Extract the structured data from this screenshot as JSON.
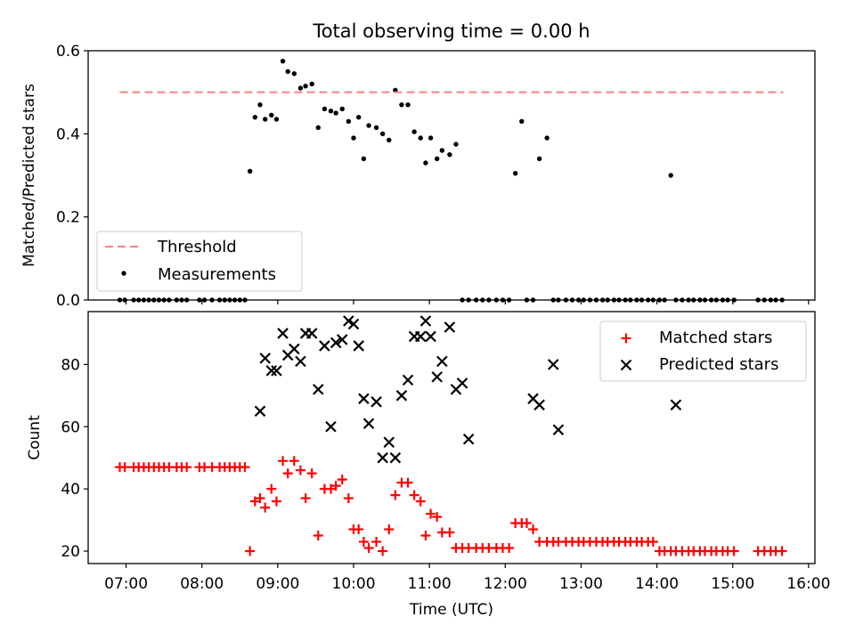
{
  "title": "Total observing time = 0.00 h",
  "colors": {
    "threshold": "#ff7f7f",
    "measurements": "#000000",
    "matched": "#ff0000",
    "predicted": "#000000"
  },
  "chart_data": [
    {
      "type": "scatter",
      "ylabel": "Matched/Predicted stars",
      "ylim": [
        0,
        0.6
      ],
      "xlim": [
        "06:30",
        "16:05"
      ],
      "yticks": [
        "0.0",
        "0.2",
        "0.4",
        "0.6"
      ],
      "legend": {
        "placement": "lower-left",
        "entries": [
          "Threshold",
          "Measurements"
        ]
      },
      "threshold": {
        "name": "Threshold",
        "value": 0.5,
        "x_start": "06:55",
        "x_end": "15:40",
        "style": "dashed"
      },
      "series": [
        {
          "name": "Measurements",
          "x": [
            "06:55",
            "06:59",
            "07:06",
            "07:10",
            "07:14",
            "07:18",
            "07:22",
            "07:26",
            "07:30",
            "07:34",
            "07:40",
            "07:44",
            "07:48",
            "07:58",
            "08:02",
            "08:08",
            "08:14",
            "08:18",
            "08:22",
            "08:26",
            "08:30",
            "08:34",
            "08:38",
            "08:42",
            "08:46",
            "08:50",
            "08:55",
            "08:59",
            "09:04",
            "09:08",
            "09:13",
            "09:18",
            "09:22",
            "09:27",
            "09:32",
            "09:37",
            "09:42",
            "09:46",
            "09:51",
            "09:56",
            "10:00",
            "10:04",
            "10:08",
            "10:12",
            "10:18",
            "10:23",
            "10:28",
            "10:33",
            "10:38",
            "10:43",
            "10:48",
            "10:53",
            "10:57",
            "11:01",
            "11:06",
            "11:10",
            "11:16",
            "11:21",
            "11:26",
            "11:31",
            "11:37",
            "11:42",
            "11:47",
            "11:53",
            "11:58",
            "12:03",
            "12:08",
            "12:13",
            "12:17",
            "12:22",
            "12:27",
            "12:33",
            "12:38",
            "12:42",
            "12:48",
            "12:53",
            "12:58",
            "13:02",
            "13:07",
            "13:12",
            "13:17",
            "13:21",
            "13:26",
            "13:30",
            "13:35",
            "13:39",
            "13:44",
            "13:48",
            "13:53",
            "13:57",
            "14:02",
            "14:06",
            "14:11",
            "14:15",
            "14:20",
            "14:25",
            "14:29",
            "14:34",
            "14:38",
            "14:43",
            "14:47",
            "14:52",
            "14:56",
            "15:01",
            "15:20",
            "15:25",
            "15:30",
            "15:34",
            "15:39"
          ],
          "y": [
            0,
            0,
            0,
            0,
            0,
            0,
            0,
            0,
            0,
            0,
            0,
            0,
            0,
            0,
            0,
            0,
            0,
            0,
            0,
            0,
            0,
            0,
            0.31,
            0.44,
            0.47,
            0.435,
            0.445,
            0.435,
            0.575,
            0.55,
            0.545,
            0.51,
            0.515,
            0.52,
            0.415,
            0.46,
            0.455,
            0.45,
            0.46,
            0.43,
            0.39,
            0.44,
            0.34,
            0.42,
            0.415,
            0.4,
            0.385,
            0.505,
            0.47,
            0.47,
            0.405,
            0.39,
            0.33,
            0.39,
            0.34,
            0.36,
            0.35,
            0.375,
            0,
            0,
            0,
            0,
            0,
            0,
            0,
            0,
            0.305,
            0.43,
            0,
            0,
            0.34,
            0.39,
            0,
            0,
            0,
            0,
            0,
            0,
            0,
            0,
            0,
            0,
            0,
            0,
            0,
            0,
            0,
            0,
            0,
            0,
            0,
            0,
            0.3,
            0,
            0,
            0,
            0,
            0,
            0,
            0,
            0,
            0,
            0,
            0,
            0,
            0,
            0,
            0,
            0
          ],
          "y_note": ""
        }
      ]
    },
    {
      "type": "scatter",
      "xlabel": "Time (UTC)",
      "ylabel": "Count",
      "ylim": [
        16,
        97
      ],
      "xlim": [
        "06:30",
        "16:05"
      ],
      "yticks": [
        "20",
        "40",
        "60",
        "80"
      ],
      "xticks": [
        "07:00",
        "08:00",
        "09:00",
        "10:00",
        "11:00",
        "12:00",
        "13:00",
        "14:00",
        "15:00",
        "16:00"
      ],
      "legend": {
        "placement": "upper-right",
        "entries": [
          "Matched stars",
          "Predicted stars"
        ]
      },
      "series": [
        {
          "name": "Matched stars",
          "marker": "plus",
          "x": [
            "06:55",
            "06:59",
            "07:06",
            "07:10",
            "07:14",
            "07:18",
            "07:22",
            "07:26",
            "07:30",
            "07:34",
            "07:40",
            "07:44",
            "07:48",
            "07:58",
            "08:02",
            "08:08",
            "08:14",
            "08:18",
            "08:22",
            "08:26",
            "08:30",
            "08:34",
            "08:38",
            "08:42",
            "08:46",
            "08:50",
            "08:55",
            "08:59",
            "09:04",
            "09:08",
            "09:13",
            "09:18",
            "09:22",
            "09:27",
            "09:32",
            "09:37",
            "09:42",
            "09:46",
            "09:51",
            "09:56",
            "10:00",
            "10:04",
            "10:08",
            "10:12",
            "10:18",
            "10:23",
            "10:28",
            "10:33",
            "10:38",
            "10:43",
            "10:48",
            "10:53",
            "10:57",
            "11:01",
            "11:06",
            "11:10",
            "11:16",
            "11:21",
            "11:26",
            "11:31",
            "11:37",
            "11:42",
            "11:47",
            "11:53",
            "11:58",
            "12:03",
            "12:08",
            "12:13",
            "12:17",
            "12:22",
            "12:27",
            "12:33",
            "12:38",
            "12:42",
            "12:48",
            "12:53",
            "12:58",
            "13:02",
            "13:07",
            "13:12",
            "13:17",
            "13:21",
            "13:26",
            "13:30",
            "13:35",
            "13:39",
            "13:44",
            "13:48",
            "13:53",
            "13:57",
            "14:02",
            "14:06",
            "14:11",
            "14:15",
            "14:20",
            "14:25",
            "14:29",
            "14:34",
            "14:38",
            "14:43",
            "14:47",
            "14:52",
            "14:56",
            "15:01",
            "15:20",
            "15:25",
            "15:30",
            "15:34",
            "15:39"
          ],
          "y": [
            47,
            47,
            47,
            47,
            47,
            47,
            47,
            47,
            47,
            47,
            47,
            47,
            47,
            47,
            47,
            47,
            47,
            47,
            47,
            47,
            47,
            47,
            20,
            36,
            37,
            34,
            40,
            36,
            49,
            45,
            49,
            46,
            37,
            45,
            25,
            40,
            40,
            41,
            43,
            37,
            27,
            27,
            23,
            21,
            23,
            20,
            27,
            38,
            42,
            42,
            38,
            36,
            25,
            32,
            31,
            26,
            26,
            21,
            21,
            21,
            21,
            21,
            21,
            21,
            21,
            21,
            29,
            29,
            29,
            27,
            23,
            23,
            23,
            23,
            23,
            23,
            23,
            23,
            23,
            23,
            23,
            23,
            23,
            23,
            23,
            23,
            23,
            23,
            23,
            23,
            20,
            20,
            20,
            20,
            20,
            20,
            20,
            20,
            20,
            20,
            20,
            20,
            20,
            20,
            20,
            20,
            20,
            20,
            20
          ],
          "y_note": ""
        },
        {
          "name": "Predicted stars",
          "marker": "x",
          "x": [
            "08:46",
            "08:50",
            "08:55",
            "08:59",
            "09:04",
            "09:08",
            "09:13",
            "09:18",
            "09:22",
            "09:27",
            "09:32",
            "09:37",
            "09:42",
            "09:46",
            "09:51",
            "09:56",
            "10:00",
            "10:04",
            "10:08",
            "10:12",
            "10:18",
            "10:23",
            "10:28",
            "10:33",
            "10:38",
            "10:43",
            "10:48",
            "10:53",
            "10:57",
            "11:01",
            "11:06",
            "11:10",
            "11:16",
            "11:21",
            "11:26",
            "11:31",
            "12:22",
            "12:27",
            "12:38",
            "12:42",
            "14:15"
          ],
          "y": [
            65,
            82,
            78,
            78,
            90,
            83,
            85,
            81,
            90,
            90,
            72,
            86,
            60,
            87,
            88,
            94,
            93,
            86,
            69,
            61,
            68,
            50,
            55,
            50,
            70,
            75,
            89,
            89,
            94,
            89,
            76,
            81,
            92,
            72,
            74,
            56,
            69,
            67,
            80,
            59,
            67
          ]
        }
      ]
    }
  ]
}
